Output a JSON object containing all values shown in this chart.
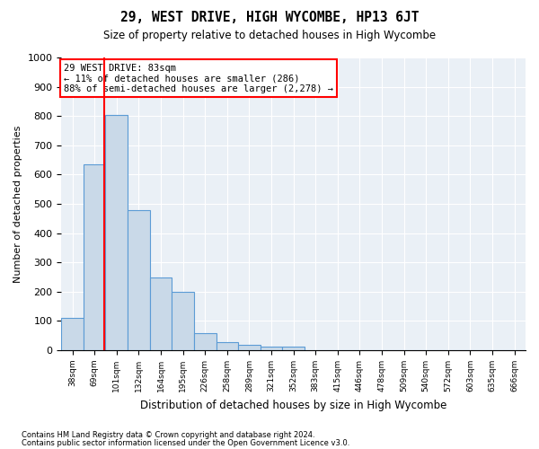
{
  "title": "29, WEST DRIVE, HIGH WYCOMBE, HP13 6JT",
  "subtitle": "Size of property relative to detached houses in High Wycombe",
  "xlabel": "Distribution of detached houses by size in High Wycombe",
  "ylabel": "Number of detached properties",
  "footnote1": "Contains HM Land Registry data © Crown copyright and database right 2024.",
  "footnote2": "Contains public sector information licensed under the Open Government Licence v3.0.",
  "bin_labels": [
    "38sqm",
    "69sqm",
    "101sqm",
    "132sqm",
    "164sqm",
    "195sqm",
    "226sqm",
    "258sqm",
    "289sqm",
    "321sqm",
    "352sqm",
    "383sqm",
    "415sqm",
    "446sqm",
    "478sqm",
    "509sqm",
    "540sqm",
    "572sqm",
    "603sqm",
    "635sqm",
    "666sqm"
  ],
  "bar_values": [
    110,
    635,
    805,
    480,
    250,
    200,
    60,
    27,
    18,
    13,
    12,
    0,
    0,
    0,
    0,
    0,
    0,
    0,
    0,
    0,
    0
  ],
  "bar_color": "#c9d9e8",
  "bar_edgecolor": "#5b9bd5",
  "ylim": [
    0,
    1000
  ],
  "yticks": [
    0,
    100,
    200,
    300,
    400,
    500,
    600,
    700,
    800,
    900,
    1000
  ],
  "annotation_line1": "29 WEST DRIVE: 83sqm",
  "annotation_line2": "← 11% of detached houses are smaller (286)",
  "annotation_line3": "88% of semi-detached houses are larger (2,278) →",
  "background_color": "#eaf0f6"
}
